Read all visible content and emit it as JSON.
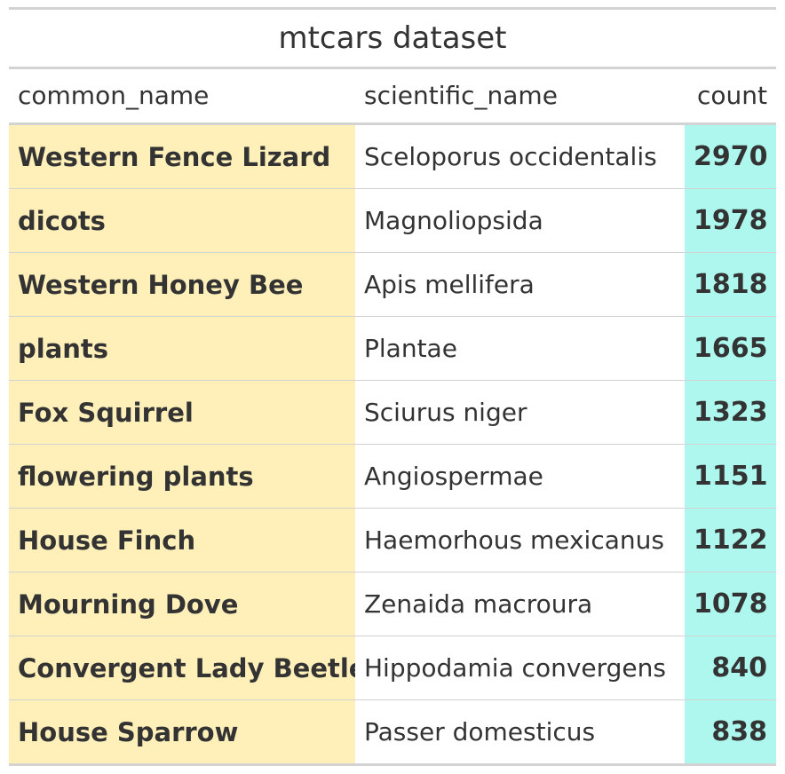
{
  "table": {
    "title": "mtcars dataset",
    "columns": [
      "common_name",
      "scientific_name",
      "count"
    ],
    "rows": [
      {
        "common_name": "Western Fence Lizard",
        "scientific_name": "Sceloporus occidentalis",
        "count": "2970"
      },
      {
        "common_name": "dicots",
        "scientific_name": "Magnoliopsida",
        "count": "1978"
      },
      {
        "common_name": "Western Honey Bee",
        "scientific_name": "Apis mellifera",
        "count": "1818"
      },
      {
        "common_name": "plants",
        "scientific_name": "Plantae",
        "count": "1665"
      },
      {
        "common_name": "Fox Squirrel",
        "scientific_name": "Sciurus niger",
        "count": "1323"
      },
      {
        "common_name": "flowering plants",
        "scientific_name": "Angiospermae",
        "count": "1151"
      },
      {
        "common_name": "House Finch",
        "scientific_name": "Haemorhous mexicanus",
        "count": "1122"
      },
      {
        "common_name": "Mourning Dove",
        "scientific_name": "Zenaida macroura",
        "count": "1078"
      },
      {
        "common_name": "Convergent Lady Beetle",
        "scientific_name": "Hippodamia convergens",
        "count": "840"
      },
      {
        "common_name": "House Sparrow",
        "scientific_name": "Passer domesticus",
        "count": "838"
      }
    ]
  },
  "colors": {
    "common_name_fill": "#ffefb9",
    "count_fill": "#aef7ef",
    "rule": "#d3d3d3",
    "text": "#333333"
  }
}
